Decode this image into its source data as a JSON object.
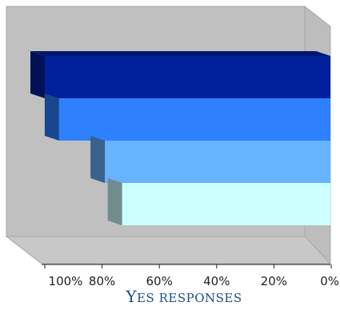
{
  "chart_data": {
    "type": "bar",
    "orientation": "horizontal",
    "three_d": true,
    "x_reversed": true,
    "categories": [
      "",
      "",
      "",
      ""
    ],
    "values": [
      100,
      95,
      79,
      73
    ],
    "colors": [
      "#00219B",
      "#2E80FF",
      "#66B3FF",
      "#CCFFFF"
    ],
    "xlim": [
      0,
      100
    ],
    "xticks": [
      "100%",
      "80%",
      "60%",
      "40%",
      "20%",
      "0%"
    ],
    "xlabel": "Yes responses",
    "grid": false,
    "legend": "none"
  }
}
